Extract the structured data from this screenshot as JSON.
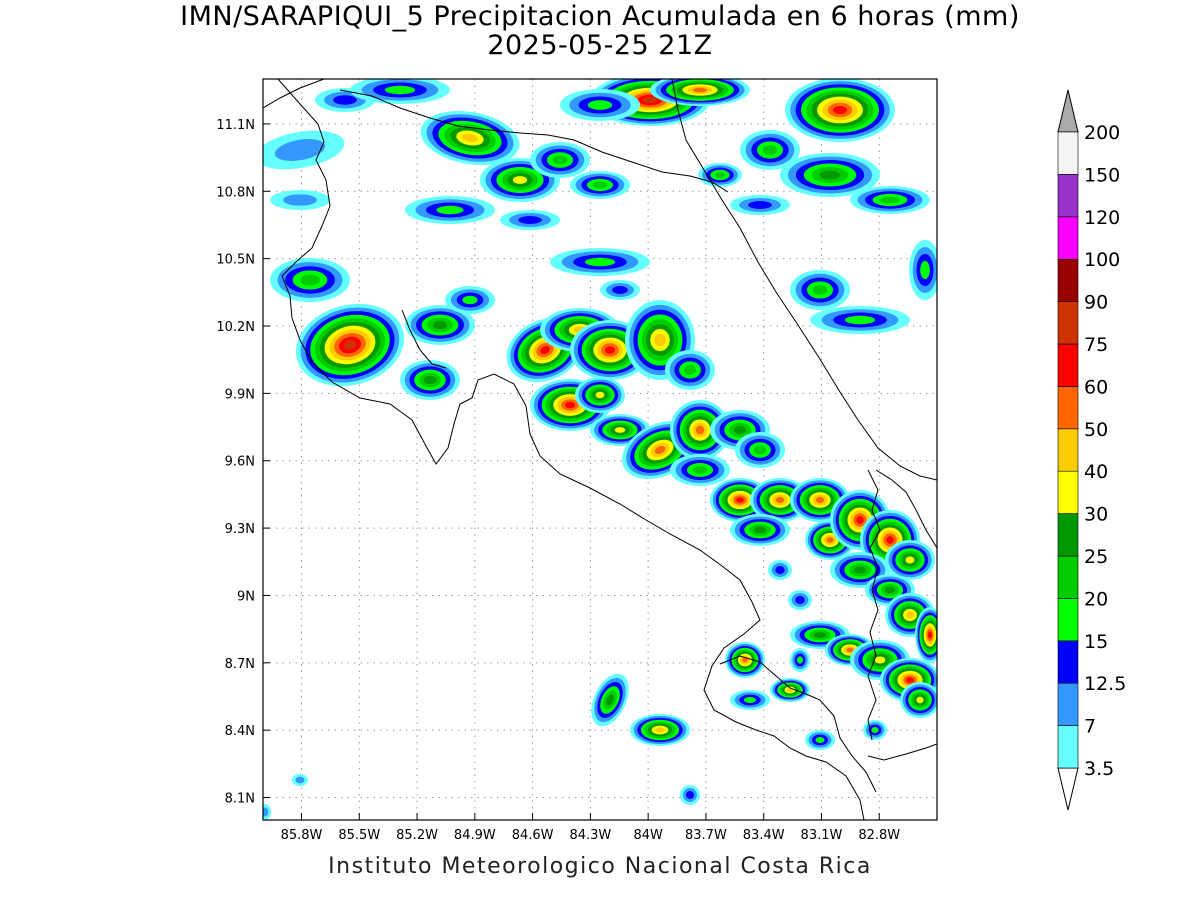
{
  "title": {
    "line1": "IMN/SARAPIQUI_5 Precipitacion Acumulada en 6 horas (mm)",
    "line2": "2025-05-25 21Z"
  },
  "footer": "Instituto Meteorologico Nacional Costa Rica",
  "map": {
    "lon_range": [
      -86.0,
      -82.5
    ],
    "lat_range": [
      8.0,
      11.3
    ],
    "lat_ticks": [
      {
        "value": 11.1,
        "label": "11.1N"
      },
      {
        "value": 10.8,
        "label": "10.8N"
      },
      {
        "value": 10.5,
        "label": "10.5N"
      },
      {
        "value": 10.2,
        "label": "10.2N"
      },
      {
        "value": 9.9,
        "label": "9.9N"
      },
      {
        "value": 9.6,
        "label": "9.6N"
      },
      {
        "value": 9.3,
        "label": "9.3N"
      },
      {
        "value": 9.0,
        "label": "9N"
      },
      {
        "value": 8.7,
        "label": "8.7N"
      },
      {
        "value": 8.4,
        "label": "8.4N"
      },
      {
        "value": 8.1,
        "label": "8.1N"
      }
    ],
    "lon_ticks": [
      {
        "value": -85.8,
        "label": "85.8W"
      },
      {
        "value": -85.5,
        "label": "85.5W"
      },
      {
        "value": -85.2,
        "label": "85.2W"
      },
      {
        "value": -84.9,
        "label": "84.9W"
      },
      {
        "value": -84.6,
        "label": "84.6W"
      },
      {
        "value": -84.3,
        "label": "84.3W"
      },
      {
        "value": -84.0,
        "label": "84W"
      },
      {
        "value": -83.7,
        "label": "83.7W"
      },
      {
        "value": -83.4,
        "label": "83.4W"
      },
      {
        "value": -83.1,
        "label": "83.1W"
      },
      {
        "value": -82.8,
        "label": "82.8W"
      }
    ]
  },
  "legend": {
    "bins": [
      {
        "label": "3.5",
        "color": "#66ffff"
      },
      {
        "label": "7",
        "color": "#3399ff"
      },
      {
        "label": "12.5",
        "color": "#0000ff"
      },
      {
        "label": "15",
        "color": "#00ff00"
      },
      {
        "label": "20",
        "color": "#00cc00"
      },
      {
        "label": "25",
        "color": "#009900"
      },
      {
        "label": "30",
        "color": "#ffff00"
      },
      {
        "label": "40",
        "color": "#ffcc00"
      },
      {
        "label": "50",
        "color": "#ff6600"
      },
      {
        "label": "60",
        "color": "#ff0000"
      },
      {
        "label": "75",
        "color": "#cc3300"
      },
      {
        "label": "90",
        "color": "#990000"
      },
      {
        "label": "100",
        "color": "#ff00ff"
      },
      {
        "label": "120",
        "color": "#9933cc"
      },
      {
        "label": "150",
        "color": "#f5f5f5"
      },
      {
        "label": "200",
        "color": "#aaaaaa"
      }
    ]
  }
}
